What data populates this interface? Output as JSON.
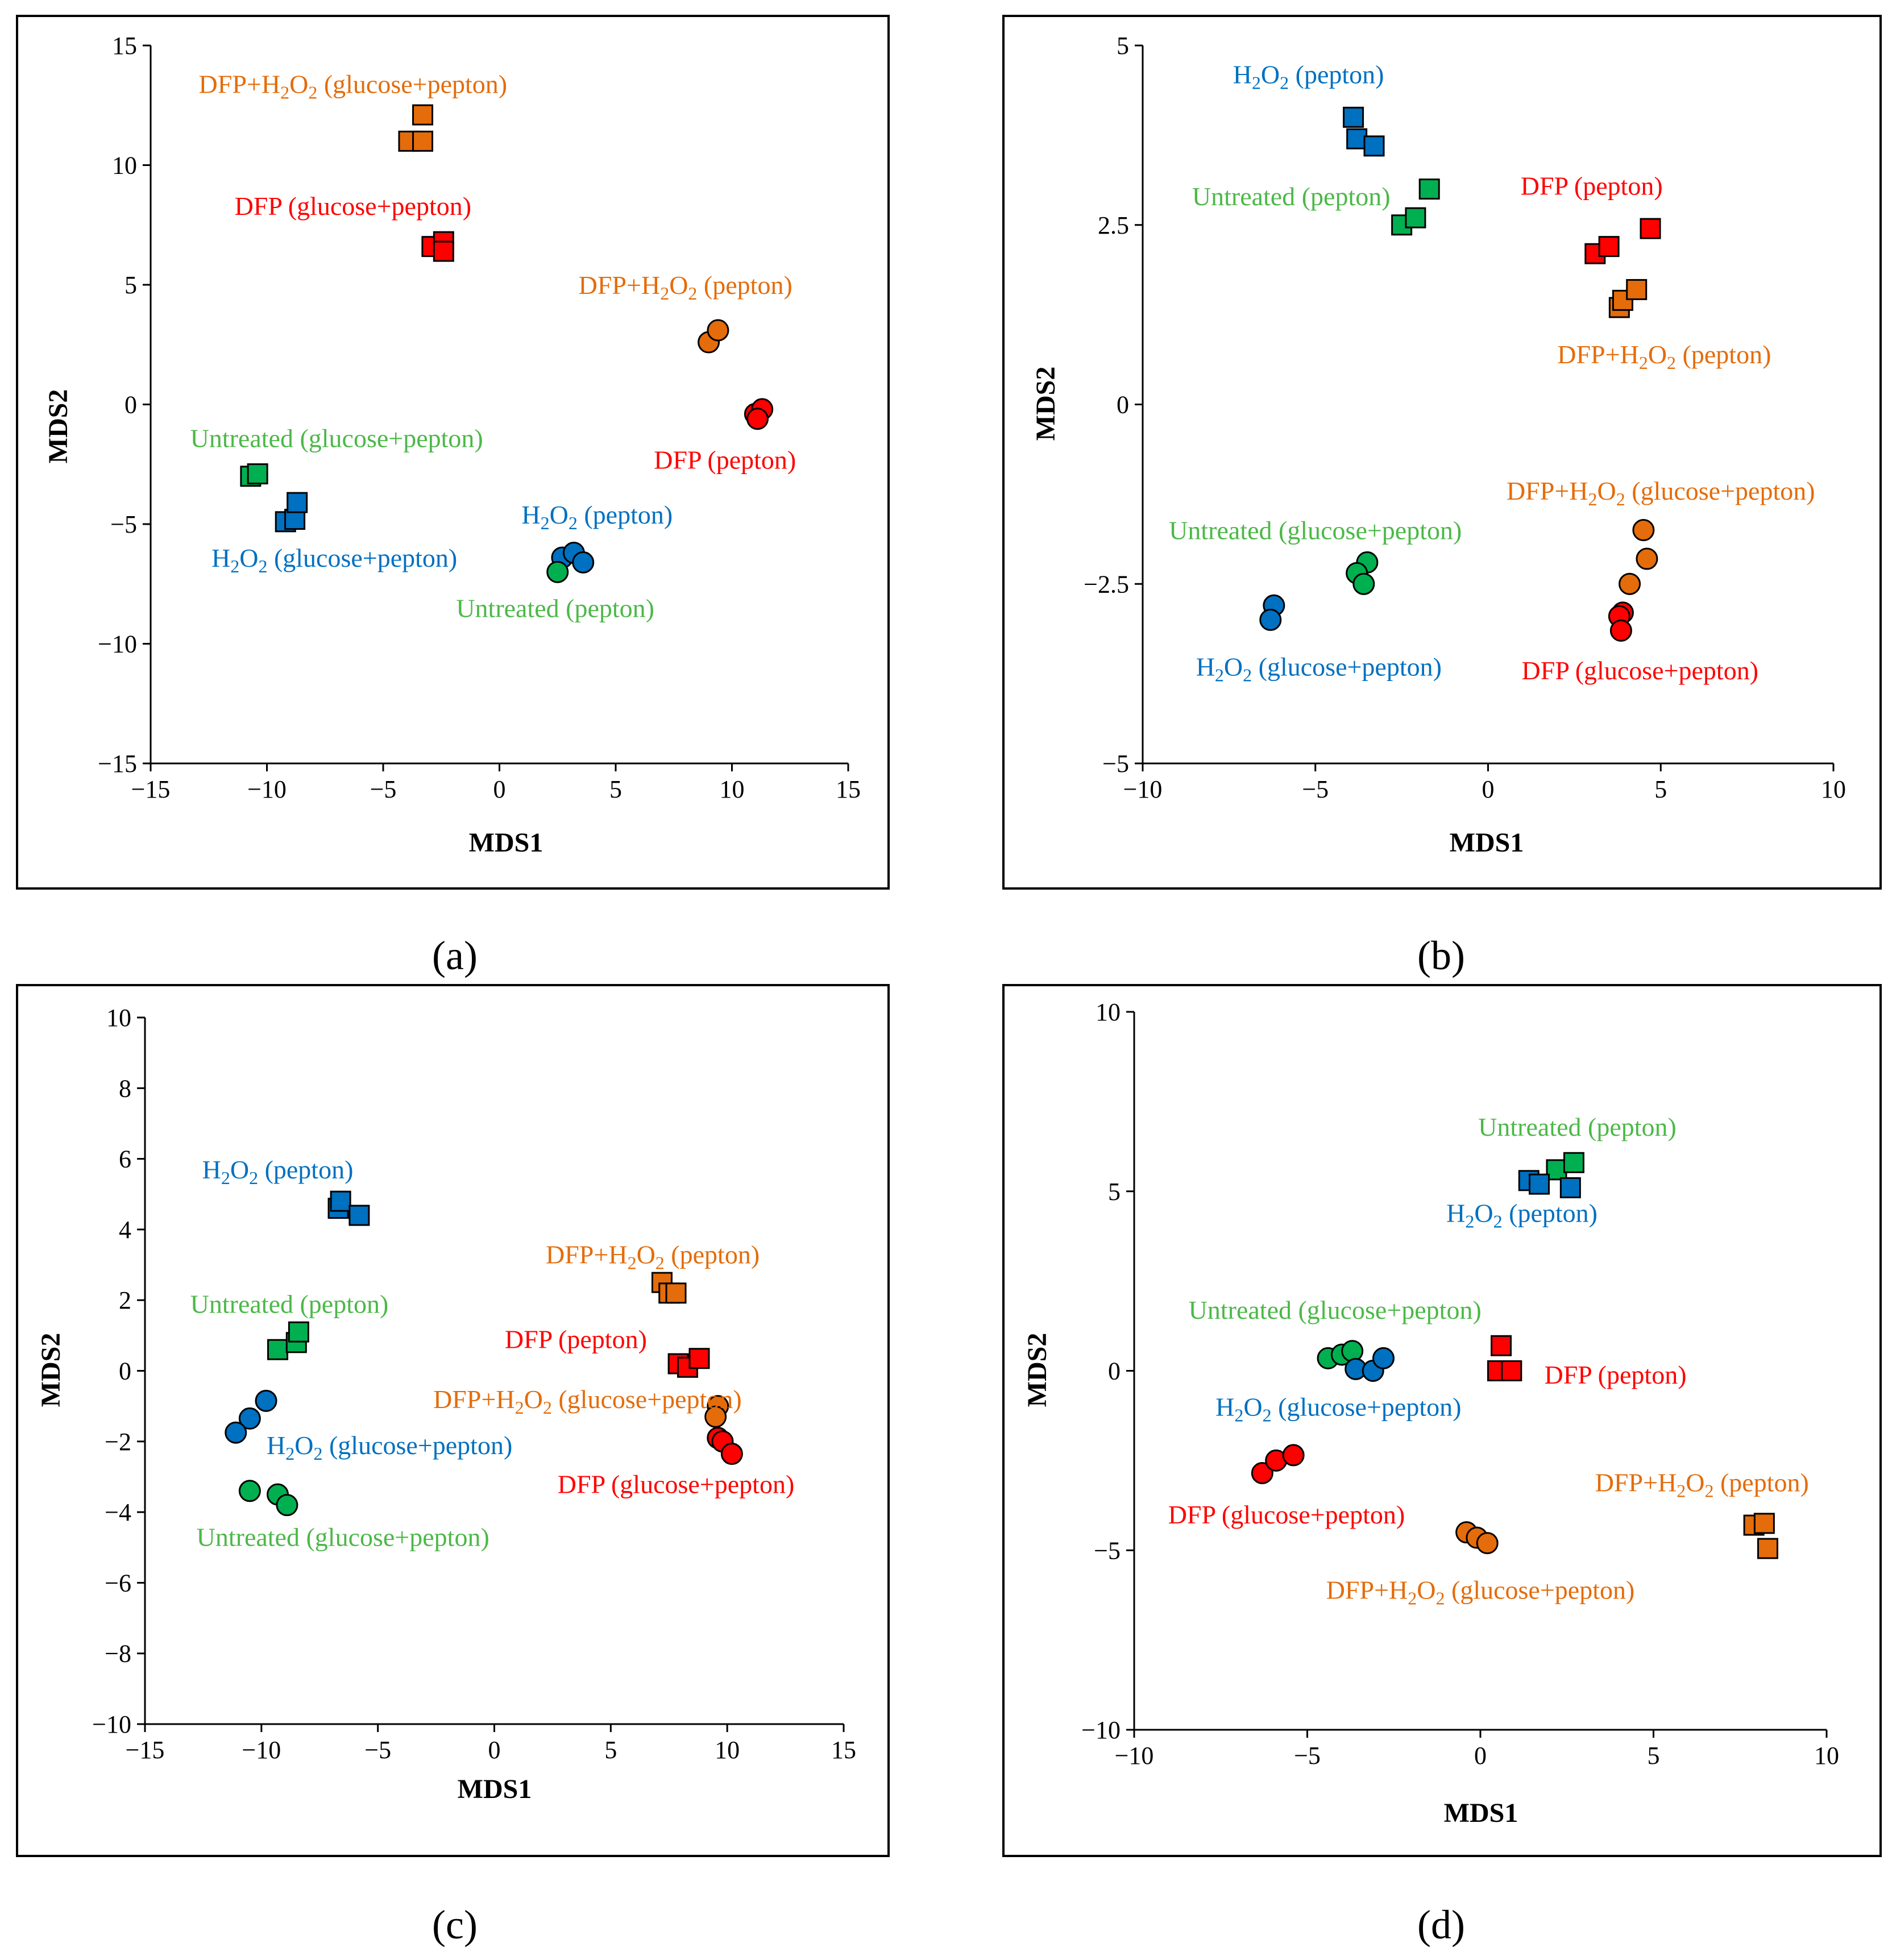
{
  "colors": {
    "red": "#FF0000",
    "orange": "#E46C0A",
    "blue": "#0070C0",
    "green": "#00B050",
    "red_text": "#FF0000",
    "orange_text": "#E46C0A",
    "blue_text": "#0070C0",
    "green_text": "#4CB848"
  },
  "chart_data": [
    {
      "id": "a",
      "type": "scatter",
      "caption": "(a)",
      "xlabel": "MDS1",
      "ylabel": "MDS2",
      "xlim": [
        -15,
        15
      ],
      "ylim": [
        -15,
        15
      ],
      "xticks": [
        -15,
        -10,
        -5,
        0,
        5,
        10,
        15
      ],
      "yticks": [
        -15,
        -10,
        -5,
        0,
        5,
        10,
        15
      ],
      "series": [
        {
          "name": "DFP+H2O2 (glucose+pepton)",
          "marker": "square",
          "color": "orange",
          "points": [
            [
              -3.3,
              12.1
            ],
            [
              -3.9,
              11.0
            ],
            [
              -3.3,
              11.0
            ]
          ]
        },
        {
          "name": "DFP (glucose+pepton)",
          "marker": "square",
          "color": "red",
          "points": [
            [
              -2.9,
              6.6
            ],
            [
              -2.4,
              6.8
            ],
            [
              -2.4,
              6.4
            ]
          ]
        },
        {
          "name": "DFP+H2O2 (pepton)",
          "marker": "circle",
          "color": "orange",
          "points": [
            [
              9.0,
              2.6
            ],
            [
              9.4,
              3.1
            ]
          ]
        },
        {
          "name": "DFP (pepton)",
          "marker": "circle",
          "color": "red",
          "points": [
            [
              11.0,
              -0.4
            ],
            [
              11.3,
              -0.2
            ],
            [
              11.1,
              -0.6
            ]
          ]
        },
        {
          "name": "Untreated (glucose+pepton)",
          "marker": "square",
          "color": "green",
          "points": [
            [
              -10.7,
              -3.0
            ],
            [
              -10.4,
              -2.9
            ]
          ]
        },
        {
          "name": "H2O2 (glucose+pepton)",
          "marker": "square",
          "color": "blue",
          "points": [
            [
              -9.2,
              -4.9
            ],
            [
              -8.8,
              -4.8
            ],
            [
              -8.7,
              -4.1
            ]
          ]
        },
        {
          "name": "H2O2 (pepton)",
          "marker": "circle",
          "color": "blue",
          "points": [
            [
              2.7,
              -6.4
            ],
            [
              3.2,
              -6.2
            ],
            [
              3.6,
              -6.6
            ]
          ]
        },
        {
          "name": "Untreated (pepton)",
          "marker": "circle",
          "color": "green",
          "points": [
            [
              2.5,
              -7.0
            ]
          ]
        }
      ],
      "annotations": [
        {
          "parts": [
            "DFP+H",
            "2",
            "O",
            "2",
            " (glucose+pepton)"
          ],
          "color": "orange",
          "x": -6.3,
          "y": 13.4
        },
        {
          "parts": [
            "DFP (glucose+pepton)"
          ],
          "color": "red",
          "x": -6.3,
          "y": 8.3
        },
        {
          "parts": [
            "DFP+H",
            "2",
            "O",
            "2",
            " (pepton)"
          ],
          "color": "orange",
          "x": 8.0,
          "y": 5.0
        },
        {
          "parts": [
            "DFP (pepton)"
          ],
          "color": "red",
          "x": 9.7,
          "y": -2.3
        },
        {
          "parts": [
            "Untreated (glucose+pepton)"
          ],
          "color": "green",
          "x": -7.0,
          "y": -1.4
        },
        {
          "parts": [
            "H",
            "2",
            "O",
            "2",
            " (glucose+pepton)"
          ],
          "color": "blue",
          "x": -7.1,
          "y": -6.4
        },
        {
          "parts": [
            "H",
            "2",
            "O",
            "2",
            " (pepton)"
          ],
          "color": "blue",
          "x": 4.2,
          "y": -4.6
        },
        {
          "parts": [
            "Untreated (pepton)"
          ],
          "color": "green",
          "x": 2.4,
          "y": -8.5
        }
      ]
    },
    {
      "id": "b",
      "type": "scatter",
      "caption": "(b)",
      "xlabel": "MDS1",
      "ylabel": "MDS2",
      "xlim": [
        -10,
        10
      ],
      "ylim": [
        -5,
        5
      ],
      "xticks": [
        -10,
        -5,
        0,
        5,
        10
      ],
      "yticks": [
        -5,
        -2.5,
        0,
        2.5,
        5
      ],
      "series": [
        {
          "name": "H2O2 (pepton)",
          "marker": "square",
          "color": "blue",
          "points": [
            [
              -3.9,
              4.0
            ],
            [
              -3.8,
              3.7
            ],
            [
              -3.3,
              3.6
            ]
          ]
        },
        {
          "name": "Untreated (pepton)",
          "marker": "square",
          "color": "green",
          "points": [
            [
              -2.5,
              2.5
            ],
            [
              -2.1,
              2.6
            ],
            [
              -1.7,
              3.0
            ]
          ]
        },
        {
          "name": "DFP (pepton)",
          "marker": "square",
          "color": "red",
          "points": [
            [
              3.1,
              2.1
            ],
            [
              3.5,
              2.2
            ],
            [
              4.7,
              2.45
            ]
          ]
        },
        {
          "name": "DFP+H2O2 (pepton)",
          "marker": "square",
          "color": "orange",
          "points": [
            [
              3.8,
              1.35
            ],
            [
              3.9,
              1.45
            ],
            [
              4.3,
              1.6
            ]
          ]
        },
        {
          "name": "DFP+H2O2 (glucose+pepton)",
          "marker": "circle",
          "color": "orange",
          "points": [
            [
              4.5,
              -1.75
            ],
            [
              4.6,
              -2.15
            ],
            [
              4.1,
              -2.5
            ]
          ]
        },
        {
          "name": "DFP (glucose+pepton)",
          "marker": "circle",
          "color": "red",
          "points": [
            [
              3.9,
              -2.9
            ],
            [
              3.8,
              -2.95
            ],
            [
              3.85,
              -3.15
            ]
          ]
        },
        {
          "name": "Untreated (glucose+pepton)",
          "marker": "circle",
          "color": "green",
          "points": [
            [
              -3.5,
              -2.2
            ],
            [
              -3.8,
              -2.35
            ],
            [
              -3.6,
              -2.5
            ]
          ]
        },
        {
          "name": "H2O2 (glucose+pepton)",
          "marker": "circle",
          "color": "blue",
          "points": [
            [
              -6.2,
              -2.8
            ],
            [
              -6.3,
              -3.0
            ]
          ]
        }
      ],
      "annotations": [
        {
          "parts": [
            "H",
            "2",
            "O",
            "2",
            " (pepton)"
          ],
          "color": "blue",
          "x": -5.2,
          "y": 4.6
        },
        {
          "parts": [
            "Untreated (pepton)"
          ],
          "color": "green",
          "x": -5.7,
          "y": 2.9
        },
        {
          "parts": [
            "DFP (pepton)"
          ],
          "color": "red",
          "x": 3.0,
          "y": 3.05
        },
        {
          "parts": [
            "DFP+H",
            "2",
            "O",
            "2",
            " (pepton)"
          ],
          "color": "orange",
          "x": 5.1,
          "y": 0.7
        },
        {
          "parts": [
            "DFP+H",
            "2",
            "O",
            "2",
            " (glucose+pepton)"
          ],
          "color": "orange",
          "x": 5.0,
          "y": -1.2
        },
        {
          "parts": [
            "Untreated (glucose+pepton)"
          ],
          "color": "green",
          "x": -5.0,
          "y": -1.75
        },
        {
          "parts": [
            "H",
            "2",
            "O",
            "2",
            " (glucose+pepton)"
          ],
          "color": "blue",
          "x": -4.9,
          "y": -3.65
        },
        {
          "parts": [
            "DFP (glucose+pepton)"
          ],
          "color": "red",
          "x": 4.4,
          "y": -3.7
        }
      ]
    },
    {
      "id": "c",
      "type": "scatter",
      "caption": "(c)",
      "xlabel": "MDS1",
      "ylabel": "MDS2",
      "xlim": [
        -15,
        15
      ],
      "ylim": [
        -10,
        10
      ],
      "xticks": [
        -15,
        -10,
        -5,
        0,
        5,
        10,
        15
      ],
      "yticks": [
        -10,
        -8,
        -6,
        -4,
        -2,
        0,
        2,
        4,
        6,
        8,
        10
      ],
      "series": [
        {
          "name": "H2O2 (pepton)",
          "marker": "square",
          "color": "blue",
          "points": [
            [
              -6.7,
              4.6
            ],
            [
              -6.6,
              4.8
            ],
            [
              -5.8,
              4.4
            ]
          ]
        },
        {
          "name": "DFP+H2O2 (pepton)",
          "marker": "square",
          "color": "orange",
          "points": [
            [
              7.2,
              2.5
            ],
            [
              7.5,
              2.2
            ],
            [
              7.8,
              2.2
            ]
          ]
        },
        {
          "name": "Untreated (pepton)",
          "marker": "square",
          "color": "green",
          "points": [
            [
              -9.3,
              0.6
            ],
            [
              -8.5,
              0.8
            ],
            [
              -8.4,
              1.1
            ]
          ]
        },
        {
          "name": "DFP (pepton)",
          "marker": "square",
          "color": "red",
          "points": [
            [
              7.9,
              0.2
            ],
            [
              8.3,
              0.1
            ],
            [
              8.8,
              0.35
            ]
          ]
        },
        {
          "name": "DFP+H2O2 (glucose+pepton)",
          "marker": "circle",
          "color": "orange",
          "points": [
            [
              9.6,
              -1.0
            ],
            [
              9.5,
              -1.3
            ]
          ]
        },
        {
          "name": "DFP (glucose+pepton)",
          "marker": "circle",
          "color": "red",
          "points": [
            [
              9.6,
              -1.9
            ],
            [
              9.8,
              -2.0
            ],
            [
              10.2,
              -2.35
            ]
          ]
        },
        {
          "name": "H2O2 (glucose+pepton)",
          "marker": "circle",
          "color": "blue",
          "points": [
            [
              -9.8,
              -0.85
            ],
            [
              -10.5,
              -1.35
            ],
            [
              -11.1,
              -1.75
            ]
          ]
        },
        {
          "name": "Untreated (glucose+pepton)",
          "marker": "circle",
          "color": "green",
          "points": [
            [
              -10.5,
              -3.4
            ],
            [
              -9.3,
              -3.5
            ],
            [
              -8.9,
              -3.8
            ]
          ]
        }
      ],
      "annotations": [
        {
          "parts": [
            "H",
            "2",
            "O",
            "2",
            " (pepton)"
          ],
          "color": "blue",
          "x": -9.3,
          "y": 5.7
        },
        {
          "parts": [
            "DFP+H",
            "2",
            "O",
            "2",
            " (pepton)"
          ],
          "color": "orange",
          "x": 6.8,
          "y": 3.3
        },
        {
          "parts": [
            "Untreated (pepton)"
          ],
          "color": "green",
          "x": -8.8,
          "y": 1.9
        },
        {
          "parts": [
            "DFP (pepton)"
          ],
          "color": "red",
          "x": 3.5,
          "y": 0.9
        },
        {
          "parts": [
            "DFP+H",
            "2",
            "O",
            "2",
            " (glucose+pepton)"
          ],
          "color": "orange",
          "x": 4.0,
          "y": -0.8
        },
        {
          "parts": [
            "H",
            "2",
            "O",
            "2",
            " (glucose+pepton)"
          ],
          "color": "blue",
          "x": -4.5,
          "y": -2.1
        },
        {
          "parts": [
            "DFP (glucose+pepton)"
          ],
          "color": "red",
          "x": 7.8,
          "y": -3.2
        },
        {
          "parts": [
            "Untreated (glucose+pepton)"
          ],
          "color": "green",
          "x": -6.5,
          "y": -4.7
        }
      ]
    },
    {
      "id": "d",
      "type": "scatter",
      "caption": "(d)",
      "xlabel": "MDS1",
      "ylabel": "MDS2",
      "xlim": [
        -10,
        10
      ],
      "ylim": [
        -10,
        10
      ],
      "xticks": [
        -10,
        -5,
        0,
        5,
        10
      ],
      "yticks": [
        -10,
        -5,
        0,
        5,
        10
      ],
      "series": [
        {
          "name": "Untreated (pepton)",
          "marker": "square",
          "color": "green",
          "points": [
            [
              2.2,
              5.6
            ],
            [
              2.7,
              5.8
            ]
          ]
        },
        {
          "name": "H2O2 (pepton)",
          "marker": "square",
          "color": "blue",
          "points": [
            [
              1.4,
              5.3
            ],
            [
              1.7,
              5.2
            ],
            [
              2.6,
              5.1
            ]
          ]
        },
        {
          "name": "DFP (pepton)",
          "marker": "square",
          "color": "red",
          "points": [
            [
              0.6,
              0.7
            ],
            [
              0.5,
              0.0
            ],
            [
              0.9,
              0.0
            ]
          ]
        },
        {
          "name": "Untreated (glucose+pepton)",
          "marker": "circle",
          "color": "green",
          "points": [
            [
              -4.4,
              0.35
            ],
            [
              -4.0,
              0.45
            ],
            [
              -3.7,
              0.55
            ]
          ]
        },
        {
          "name": "H2O2 (glucose+pepton)",
          "marker": "circle",
          "color": "blue",
          "points": [
            [
              -3.6,
              0.05
            ],
            [
              -3.1,
              0.0
            ],
            [
              -2.8,
              0.35
            ]
          ]
        },
        {
          "name": "DFP (glucose+pepton)",
          "marker": "circle",
          "color": "red",
          "points": [
            [
              -6.3,
              -2.85
            ],
            [
              -5.9,
              -2.5
            ],
            [
              -5.4,
              -2.35
            ]
          ]
        },
        {
          "name": "DFP+H2O2 (glucose+pepton)",
          "marker": "circle",
          "color": "orange",
          "points": [
            [
              -0.4,
              -4.5
            ],
            [
              -0.1,
              -4.65
            ],
            [
              0.2,
              -4.8
            ]
          ]
        },
        {
          "name": "DFP+H2O2 (pepton)",
          "marker": "square",
          "color": "orange",
          "points": [
            [
              7.9,
              -4.3
            ],
            [
              8.2,
              -4.25
            ],
            [
              8.3,
              -4.95
            ]
          ]
        }
      ],
      "annotations": [
        {
          "parts": [
            "Untreated (pepton)"
          ],
          "color": "green",
          "x": 2.8,
          "y": 6.8
        },
        {
          "parts": [
            "H",
            "2",
            "O",
            "2",
            " (pepton)"
          ],
          "color": "blue",
          "x": 1.2,
          "y": 4.4
        },
        {
          "parts": [
            "Untreated (glucose+pepton)"
          ],
          "color": "green",
          "x": -4.2,
          "y": 1.7
        },
        {
          "parts": [
            "DFP (pepton)"
          ],
          "color": "red",
          "x": 3.9,
          "y": -0.1
        },
        {
          "parts": [
            "H",
            "2",
            "O",
            "2",
            " (glucose+pepton)"
          ],
          "color": "blue",
          "x": -4.1,
          "y": -1.0
        },
        {
          "parts": [
            "DFP (glucose+pepton)"
          ],
          "color": "red",
          "x": -5.6,
          "y": -4.0
        },
        {
          "parts": [
            "DFP+H",
            "2",
            "O",
            "2",
            " (pepton)"
          ],
          "color": "orange",
          "x": 6.4,
          "y": -3.1
        },
        {
          "parts": [
            "DFP+H",
            "2",
            "O",
            "2",
            " (glucose+pepton)"
          ],
          "color": "orange",
          "x": 0.0,
          "y": -6.1
        }
      ]
    }
  ]
}
